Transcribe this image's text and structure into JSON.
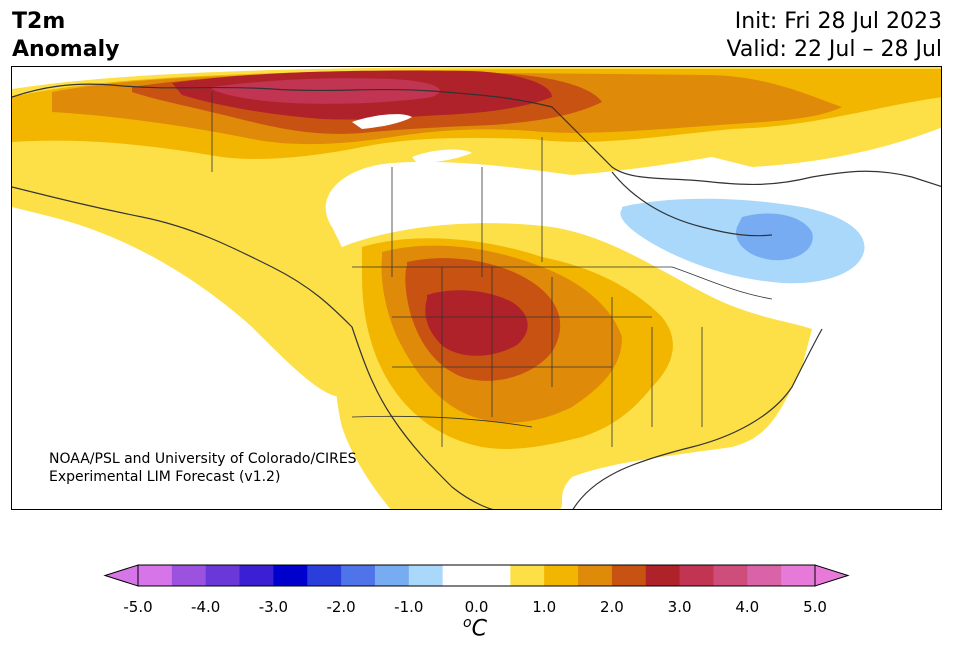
{
  "header": {
    "title_line1": "T2m",
    "title_line2": "Anomaly",
    "init_text": "Init: Fri 28 Jul 2023",
    "valid_text": "Valid: 22 Jul – 28 Jul"
  },
  "credit": {
    "line1": "NOAA/PSL and University of Colorado/CIRES",
    "line2": "Experimental LIM Forecast (v1.2)"
  },
  "colorbar": {
    "unit_sup": "o",
    "unit_letter": "C",
    "ticks": [
      "-5.0",
      "-4.0",
      "-3.0",
      "-2.0",
      "-1.0",
      "0.0",
      "1.0",
      "2.0",
      "3.0",
      "4.0",
      "5.0"
    ],
    "tick_values": [
      -5.0,
      -4.0,
      -3.0,
      -2.0,
      -1.0,
      0.0,
      1.0,
      2.0,
      3.0,
      4.0,
      5.0
    ],
    "under_color": "#d675e8",
    "over_color": "#e77ad8",
    "colors": [
      "#d675e8",
      "#9b52df",
      "#6a38d9",
      "#3b1fd2",
      "#0000cc",
      "#2a3edb",
      "#4f73e8",
      "#78acf2",
      "#aad8fb",
      "#ffffff",
      "#ffffff",
      "#fde047",
      "#f2b600",
      "#e08a0a",
      "#c85212",
      "#b0222a",
      "#c13452",
      "#cf4d7b",
      "#da62a6",
      "#e77ad8"
    ]
  },
  "map_colors": {
    "land_neutral": "#ffffff",
    "water": "#ffffff",
    "coast": "#333333",
    "border": "#333333"
  }
}
